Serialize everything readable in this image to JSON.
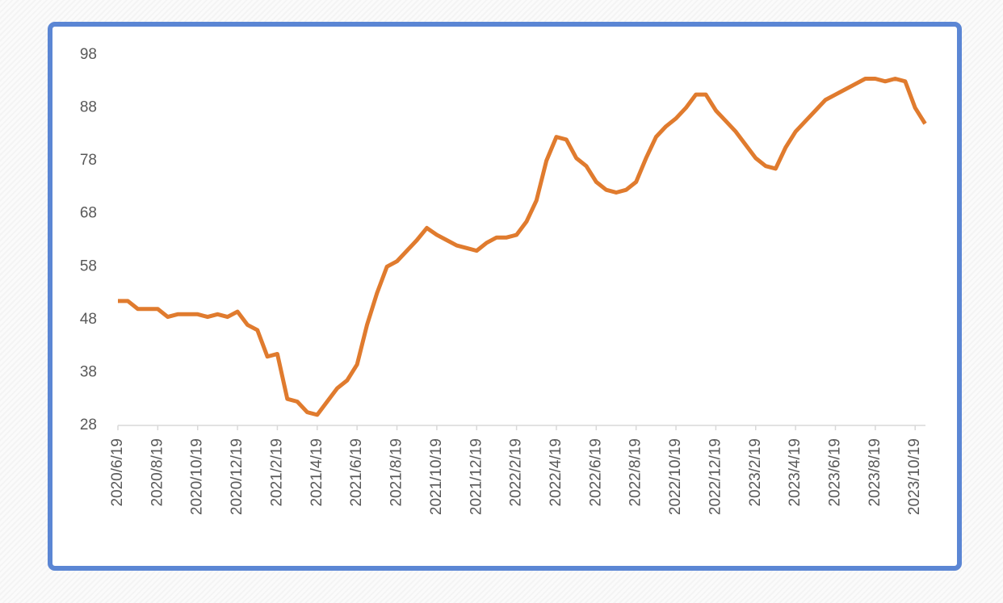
{
  "chart_data": {
    "type": "line",
    "categories": [
      "2020/6/19",
      null,
      null,
      null,
      "2020/8/19",
      null,
      null,
      null,
      "2020/10/19",
      null,
      null,
      null,
      "2020/12/19",
      null,
      null,
      null,
      "2021/2/19",
      null,
      null,
      null,
      "2021/4/19",
      null,
      null,
      null,
      "2021/6/19",
      null,
      null,
      null,
      "2021/8/19",
      null,
      null,
      null,
      "2021/10/19",
      null,
      null,
      null,
      "2021/12/19",
      null,
      null,
      null,
      "2022/2/19",
      null,
      null,
      null,
      "2022/4/19",
      null,
      null,
      null,
      "2022/6/19",
      null,
      null,
      null,
      "2022/8/19",
      null,
      null,
      null,
      "2022/10/19",
      null,
      null,
      null,
      "2022/12/19",
      null,
      null,
      null,
      "2023/2/19",
      null,
      null,
      null,
      "2023/4/19",
      null,
      null,
      null,
      "2023/6/19",
      null,
      null,
      null,
      "2023/8/19",
      null,
      null,
      null,
      "2023/10/19",
      null
    ],
    "series": [
      {
        "color": "#e07b2e",
        "values": [
          51.5,
          51.5,
          50,
          50,
          50,
          48.5,
          49,
          49,
          49,
          48.5,
          49,
          48.5,
          49.5,
          47,
          46,
          41,
          41.5,
          33,
          32.5,
          30.5,
          30,
          32.5,
          35,
          36.5,
          39.5,
          47,
          53,
          58,
          59,
          61,
          63,
          65.3,
          64,
          63,
          62,
          61.5,
          61,
          62.5,
          63.5,
          63.5,
          64,
          66.5,
          70.5,
          78,
          82.5,
          82,
          78.5,
          77,
          74,
          72.5,
          72,
          72.5,
          74,
          78.5,
          82.5,
          84.5,
          86,
          88,
          90.5,
          90.5,
          87.5,
          85.5,
          83.5,
          81,
          78.5,
          77,
          76.5,
          80.5,
          83.5,
          85.5,
          87.5,
          89.5,
          90.5,
          91.5,
          92.5,
          93.5,
          93.5,
          93,
          93.5,
          93,
          88,
          85
        ]
      }
    ],
    "ylim": [
      28,
      98
    ],
    "yticks": [
      28,
      38,
      48,
      58,
      68,
      78,
      88,
      98
    ],
    "grid": false
  }
}
